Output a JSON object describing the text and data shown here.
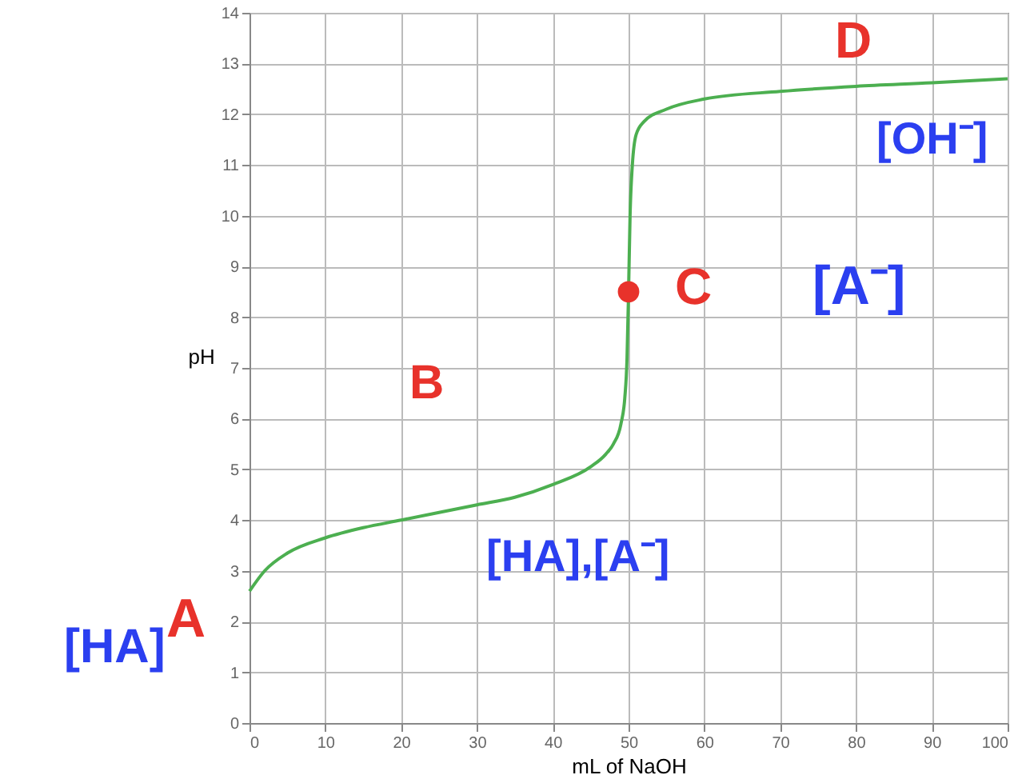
{
  "chart_data": {
    "type": "line",
    "xlabel": "mL of NaOH",
    "ylabel": "pH",
    "xlim": [
      0,
      100
    ],
    "ylim": [
      0,
      14
    ],
    "xticks": [
      0,
      10,
      20,
      30,
      40,
      50,
      60,
      70,
      80,
      90,
      100
    ],
    "yticks": [
      0,
      1,
      2,
      3,
      4,
      5,
      6,
      7,
      8,
      9,
      10,
      11,
      12,
      13,
      14
    ],
    "grid": true,
    "marker": "none",
    "line_style": "solid",
    "series": [
      {
        "type": "line",
        "color": "#4caf50",
        "x": [
          0,
          2,
          5,
          10,
          15,
          20,
          25,
          30,
          35,
          40,
          45,
          47,
          48,
          49,
          49.5,
          49.8,
          50,
          50.2,
          50.5,
          51,
          52,
          55,
          60,
          70,
          80,
          90,
          100
        ],
        "values": [
          2.6,
          3.0,
          3.35,
          3.65,
          3.85,
          4.0,
          4.15,
          4.3,
          4.45,
          4.7,
          5.05,
          5.3,
          5.5,
          5.9,
          6.4,
          7.2,
          8.5,
          10.0,
          11.0,
          11.6,
          11.85,
          12.1,
          12.3,
          12.45,
          12.55,
          12.62,
          12.7
        ]
      },
      {
        "type": "scatter",
        "marker": "circle",
        "color": "#e8322b",
        "x": [
          50
        ],
        "values": [
          8.5
        ]
      }
    ],
    "annotations": [
      "[HA]",
      "A",
      "B",
      "[HA],[A⁻]",
      "C",
      "[A⁻]",
      "D",
      "[OH⁻]"
    ]
  }
}
